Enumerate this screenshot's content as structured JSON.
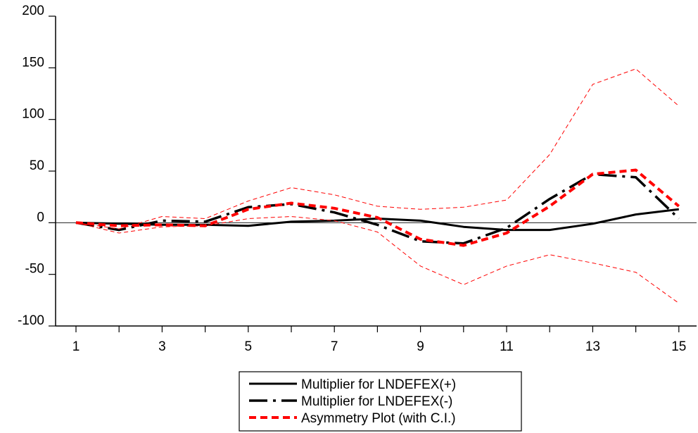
{
  "chart_data": {
    "type": "line",
    "x": [
      1,
      2,
      3,
      4,
      5,
      6,
      7,
      8,
      9,
      10,
      11,
      12,
      13,
      14,
      15
    ],
    "xticks": [
      1,
      3,
      5,
      7,
      9,
      11,
      13,
      15
    ],
    "xlim": [
      0.5,
      15.3
    ],
    "yticks": [
      200,
      150,
      100,
      50,
      0,
      -50,
      -100
    ],
    "ylim": [
      -100,
      200
    ],
    "zero_line": true,
    "grid": false,
    "legend_position": "bottom-center",
    "series": [
      {
        "name": "Multiplier for LNDEFEX(+)",
        "color": "#000000",
        "style": "solid",
        "values": [
          0,
          -1,
          -2,
          -2,
          -3,
          1,
          2,
          4,
          2,
          -4,
          -7,
          -7,
          -1,
          8,
          13
        ]
      },
      {
        "name": "Multiplier for LNDEFEX(-)",
        "color": "#000000",
        "style": "long-dash",
        "values": [
          0,
          -7,
          2,
          1,
          15,
          18,
          10,
          -2,
          -18,
          -20,
          -5,
          23,
          47,
          44,
          4
        ]
      },
      {
        "name": "Asymmetry Plot (with C.I.)",
        "color": "#ff0000",
        "style": "dash",
        "values": [
          0,
          -3,
          -2,
          -3,
          13,
          19,
          14,
          5,
          -16,
          -22,
          -10,
          16,
          47,
          51,
          16
        ]
      },
      {
        "name": "",
        "role": "upper-ci",
        "color": "#ff0000",
        "style": "thin-dash",
        "values": [
          0,
          -6,
          6,
          4,
          21,
          34,
          27,
          16,
          13,
          15,
          22,
          66,
          134,
          149,
          113
        ]
      },
      {
        "name": "",
        "role": "lower-ci",
        "color": "#ff0000",
        "style": "thin-dash",
        "values": [
          0,
          -10,
          -4,
          -3,
          4,
          6,
          2,
          -9,
          -42,
          -60,
          -42,
          -31,
          -39,
          -48,
          -78
        ]
      }
    ]
  }
}
